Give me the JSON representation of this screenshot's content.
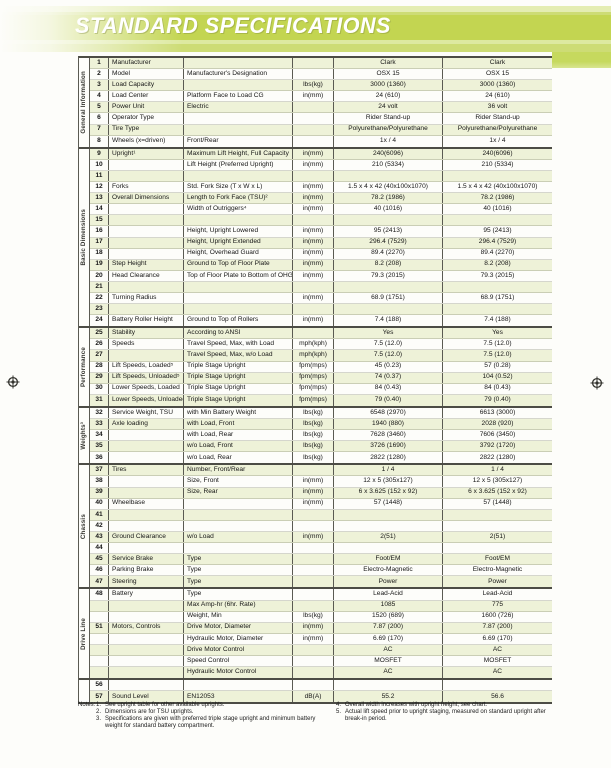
{
  "page": {
    "title": "STANDARD SPECIFICATIONS"
  },
  "colors": {
    "band_lime": "#c3d551",
    "band_light_stripe": "#dde9a0",
    "row_alternate": "#eef2d8",
    "section_border": "#4c4c45",
    "title_text": "#ffffff"
  },
  "table": {
    "sections": [
      {
        "label": "General Information",
        "rows": [
          {
            "num": "1",
            "name": "Manufacturer",
            "desc": "",
            "units": "",
            "v1": "Clark",
            "v2": "Clark"
          },
          {
            "num": "2",
            "name": "Model",
            "desc": "Manufacturer's Designation",
            "units": "",
            "v1": "OSX 15",
            "v2": "OSX 15"
          },
          {
            "num": "3",
            "name": "Load Capacity",
            "desc": "",
            "units": "lbs(kg)",
            "v1": "3000 (1360)",
            "v2": "3000 (1360)"
          },
          {
            "num": "4",
            "name": "Load Center",
            "desc": "Platform Face to Load CG",
            "units": "in(mm)",
            "v1": "24 (610)",
            "v2": "24 (610)"
          },
          {
            "num": "5",
            "name": "Power Unit",
            "desc": "Electric",
            "units": "",
            "v1": "24 volt",
            "v2": "36 volt"
          },
          {
            "num": "6",
            "name": "Operator Type",
            "desc": "",
            "units": "",
            "v1": "Rider Stand-up",
            "v2": "Rider Stand-up"
          },
          {
            "num": "7",
            "name": "Tire Type",
            "desc": "",
            "units": "",
            "v1": "Polyurethane/Polyurethane",
            "v2": "Polyurethane/Polyurethane"
          },
          {
            "num": "8",
            "name": "Wheels (x=driven)",
            "desc": "Front/Rear",
            "units": "",
            "v1": "1x / 4",
            "v2": "1x / 4"
          }
        ]
      },
      {
        "label": "Basic Dimensions",
        "rows": [
          {
            "num": "9",
            "name": "Upright¹",
            "desc": "Maximum Lift Height, Full Capacity",
            "units": "in(mm)",
            "v1": "240(6096)",
            "v2": "240(6096)"
          },
          {
            "num": "10",
            "name": "",
            "desc": "Lift Height (Preferred Upright)",
            "units": "in(mm)",
            "v1": "210 (5334)",
            "v2": "210 (5334)"
          },
          {
            "num": "11",
            "name": "",
            "desc": "",
            "units": "",
            "v1": "",
            "v2": ""
          },
          {
            "num": "12",
            "name": "Forks",
            "desc": "Std. Fork Size (T x W x L)",
            "units": "in(mm)",
            "v1": "1.5 x 4 x 42 (40x100x1070)",
            "v2": "1.5 x 4 x 42 (40x100x1070)"
          },
          {
            "num": "13",
            "name": "Overall Dimensions",
            "desc": "Length to Fork Face (TSU)²",
            "units": "in(mm)",
            "v1": "78.2 (1986)",
            "v2": "78.2 (1986)"
          },
          {
            "num": "14",
            "name": "",
            "desc": "Width of Outriggers⁴",
            "units": "in(mm)",
            "v1": "40 (1016)",
            "v2": "40 (1016)"
          },
          {
            "num": "15",
            "name": "",
            "desc": "",
            "units": "",
            "v1": "",
            "v2": ""
          },
          {
            "num": "16",
            "name": "",
            "desc": "Height, Upright Lowered",
            "units": "in(mm)",
            "v1": "95 (2413)",
            "v2": "95 (2413)"
          },
          {
            "num": "17",
            "name": "",
            "desc": "Height, Upright Extended",
            "units": "in(mm)",
            "v1": "296.4 (7529)",
            "v2": "296.4 (7529)"
          },
          {
            "num": "18",
            "name": "",
            "desc": "Height, Overhead Guard",
            "units": "in(mm)",
            "v1": "89.4 (2270)",
            "v2": "89.4 (2270)"
          },
          {
            "num": "19",
            "name": "Step Height",
            "desc": "Ground to Top of Floor Plate",
            "units": "in(mm)",
            "v1": "8.2 (208)",
            "v2": "8.2 (208)"
          },
          {
            "num": "20",
            "name": "Head Clearance",
            "desc": "Top of Floor Plate to Bottom of OHG",
            "units": "in(mm)",
            "v1": "79.3 (2015)",
            "v2": "79.3 (2015)"
          },
          {
            "num": "21",
            "name": "",
            "desc": "",
            "units": "",
            "v1": "",
            "v2": ""
          },
          {
            "num": "22",
            "name": "Turning Radius",
            "desc": "",
            "units": "in(mm)",
            "v1": "68.9 (1751)",
            "v2": "68.9 (1751)"
          },
          {
            "num": "23",
            "name": "",
            "desc": "",
            "units": "",
            "v1": "",
            "v2": ""
          },
          {
            "num": "24",
            "name": "Battery Roller Height",
            "desc": "Ground to Top of Rollers",
            "units": "in(mm)",
            "v1": "7.4 (188)",
            "v2": "7.4 (188)"
          }
        ]
      },
      {
        "label": "Performance",
        "rows": [
          {
            "num": "25",
            "name": "Stability",
            "desc": "According to ANSI",
            "units": "",
            "v1": "Yes",
            "v2": "Yes"
          },
          {
            "num": "26",
            "name": "Speeds",
            "desc": "Travel Speed, Max, with Load",
            "units": "mph(kph)",
            "v1": "7.5 (12.0)",
            "v2": "7.5 (12.0)"
          },
          {
            "num": "27",
            "name": "",
            "desc": "Travel Speed, Max, w/o Load",
            "units": "mph(kph)",
            "v1": "7.5 (12.0)",
            "v2": "7.5 (12.0)"
          },
          {
            "num": "28",
            "name": "Lift Speeds, Loaded⁵",
            "desc": "Triple Stage Upright",
            "units": "fpm(mps)",
            "v1": "45 (0.23)",
            "v2": "57 (0.28)"
          },
          {
            "num": "29",
            "name": "Lift Speeds, Unloaded⁵",
            "desc": "Triple Stage Upright",
            "units": "fpm(mps)",
            "v1": "74 (0.37)",
            "v2": "104 (0.52)"
          },
          {
            "num": "30",
            "name": "Lower Speeds, Loaded",
            "desc": "Triple Stage Upright",
            "units": "fpm(mps)",
            "v1": "84 (0.43)",
            "v2": "84 (0.43)"
          },
          {
            "num": "31",
            "name": "Lower Speeds, Unloaded",
            "desc": "Triple Stage Upright",
            "units": "fpm(mps)",
            "v1": "79 (0.40)",
            "v2": "79 (0.40)"
          }
        ]
      },
      {
        "label": "Weights³",
        "rows": [
          {
            "num": "32",
            "name": "Service Weight, TSU",
            "desc": "with Min Battery Weight",
            "units": "lbs(kg)",
            "v1": "6548 (2970)",
            "v2": "6613 (3000)"
          },
          {
            "num": "33",
            "name": "Axle loading",
            "desc": "with Load, Front",
            "units": "lbs(kg)",
            "v1": "1940 (880)",
            "v2": "2028 (920)"
          },
          {
            "num": "34",
            "name": "",
            "desc": "with Load, Rear",
            "units": "lbs(kg)",
            "v1": "7628 (3460)",
            "v2": "7606 (3450)"
          },
          {
            "num": "35",
            "name": "",
            "desc": "w/o Load, Front",
            "units": "lbs(kg)",
            "v1": "3726 (1690)",
            "v2": "3792 (1720)"
          },
          {
            "num": "36",
            "name": "",
            "desc": "w/o Load, Rear",
            "units": "lbs(kg)",
            "v1": "2822 (1280)",
            "v2": "2822 (1280)"
          }
        ]
      },
      {
        "label": "Chassis",
        "rows": [
          {
            "num": "37",
            "name": "Tires",
            "desc": "Number, Front/Rear",
            "units": "",
            "v1": "1 / 4",
            "v2": "1 / 4"
          },
          {
            "num": "38",
            "name": "",
            "desc": "Size, Front",
            "units": "in(mm)",
            "v1": "12 x 5 (305x127)",
            "v2": "12 x 5 (305x127)"
          },
          {
            "num": "39",
            "name": "",
            "desc": "Size, Rear",
            "units": "in(mm)",
            "v1": "6 x 3.625 (152 x 92)",
            "v2": "6 x 3.625 (152 x 92)"
          },
          {
            "num": "40",
            "name": "Wheelbase",
            "desc": "",
            "units": "in(mm)",
            "v1": "57 (1448)",
            "v2": "57 (1448)"
          },
          {
            "num": "41",
            "name": "",
            "desc": "",
            "units": "",
            "v1": "",
            "v2": ""
          },
          {
            "num": "42",
            "name": "",
            "desc": "",
            "units": "",
            "v1": "",
            "v2": ""
          },
          {
            "num": "43",
            "name": "Ground Clearance",
            "desc": "w/o Load",
            "units": "in(mm)",
            "v1": "2(51)",
            "v2": "2(51)"
          },
          {
            "num": "44",
            "name": "",
            "desc": "",
            "units": "",
            "v1": "",
            "v2": ""
          },
          {
            "num": "45",
            "name": "Service Brake",
            "desc": "Type",
            "units": "",
            "v1": "Foot/EM",
            "v2": "Foot/EM"
          },
          {
            "num": "46",
            "name": "Parking Brake",
            "desc": "Type",
            "units": "",
            "v1": "Electro-Magnetic",
            "v2": "Electro-Magnetic"
          },
          {
            "num": "47",
            "name": "Steering",
            "desc": "Type",
            "units": "",
            "v1": "Power",
            "v2": "Power"
          }
        ]
      },
      {
        "label": "Drive Line",
        "rows": [
          {
            "num": "48",
            "name": "Battery",
            "desc": "Type",
            "units": "",
            "v1": "Lead-Acid",
            "v2": "Lead-Acid"
          },
          {
            "num": "",
            "name": "",
            "desc": "Max Amp-hr (6hr. Rate)",
            "units": "",
            "v1": "1085",
            "v2": "775"
          },
          {
            "num": "",
            "name": "",
            "desc": "Weight, Min",
            "units": "lbs(kg)",
            "v1": "1520 (689)",
            "v2": "1600 (726)"
          },
          {
            "num": "51",
            "name": "Motors, Controls",
            "desc": "Drive Motor, Diameter",
            "units": "in(mm)",
            "v1": "7.87 (200)",
            "v2": "7.87 (200)"
          },
          {
            "num": "",
            "name": "",
            "desc": "Hydraulic Motor, Diameter",
            "units": "in(mm)",
            "v1": "6.69 (170)",
            "v2": "6.69 (170)"
          },
          {
            "num": "",
            "name": "",
            "desc": "Drive Motor Control",
            "units": "",
            "v1": "AC",
            "v2": "AC"
          },
          {
            "num": "",
            "name": "",
            "desc": "Speed Control",
            "units": "",
            "v1": "MOSFET",
            "v2": "MOSFET"
          },
          {
            "num": "",
            "name": "",
            "desc": "Hydraulic Motor Control",
            "units": "",
            "v1": "AC",
            "v2": "AC"
          }
        ]
      },
      {
        "label": "",
        "rows": [
          {
            "num": "56",
            "name": "",
            "desc": "",
            "units": "",
            "v1": "",
            "v2": ""
          },
          {
            "num": "57",
            "name": "Sound Level",
            "desc": "EN12053",
            "units": "dB(A)",
            "v1": "55.2",
            "v2": "56.6"
          }
        ]
      }
    ]
  },
  "notes": {
    "label": "Notes:",
    "left": [
      {
        "num": "1.",
        "text": "See upright table for other available uprights."
      },
      {
        "num": "2.",
        "text": "Dimensions are for TSU uprights."
      },
      {
        "num": "3.",
        "text": "Specifications are given with preferred triple stage upright and minimum battery weight for standard battery compartment."
      }
    ],
    "right": [
      {
        "num": "4.",
        "text": "Overall width increases with upright height, see chart."
      },
      {
        "num": "5.",
        "text": "Actual lift speed prior to upright staging, measured on standard upright after break-in period."
      }
    ]
  }
}
